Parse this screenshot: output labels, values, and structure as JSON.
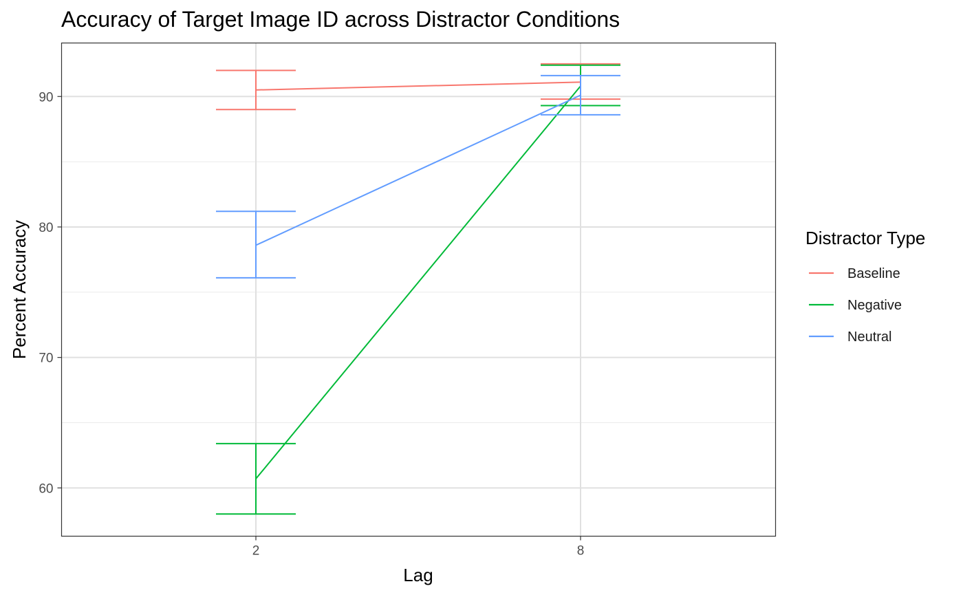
{
  "chart_data": {
    "type": "line",
    "title": "Accuracy of Target Image ID across Distractor Conditions",
    "xlabel": "Lag",
    "ylabel": "Percent Accuracy",
    "categories": [
      "2",
      "8"
    ],
    "y_ticks": [
      60,
      70,
      80,
      90
    ],
    "ylim": [
      56.3,
      94.1
    ],
    "grid": true,
    "error_bars": true,
    "legend": {
      "title": "Distractor Type",
      "position": "right"
    },
    "series": [
      {
        "name": "Baseline",
        "color": "#F8766D",
        "values": [
          90.5,
          91.1
        ],
        "error_low": [
          89.0,
          89.8
        ],
        "error_high": [
          92.0,
          92.5
        ]
      },
      {
        "name": "Negative",
        "color": "#00BA38",
        "values": [
          60.7,
          90.8
        ],
        "error_low": [
          58.0,
          89.3
        ],
        "error_high": [
          63.4,
          92.4
        ]
      },
      {
        "name": "Neutral",
        "color": "#619CFF",
        "values": [
          78.6,
          90.1
        ],
        "error_low": [
          76.1,
          88.6
        ],
        "error_high": [
          81.2,
          91.6
        ]
      }
    ]
  }
}
